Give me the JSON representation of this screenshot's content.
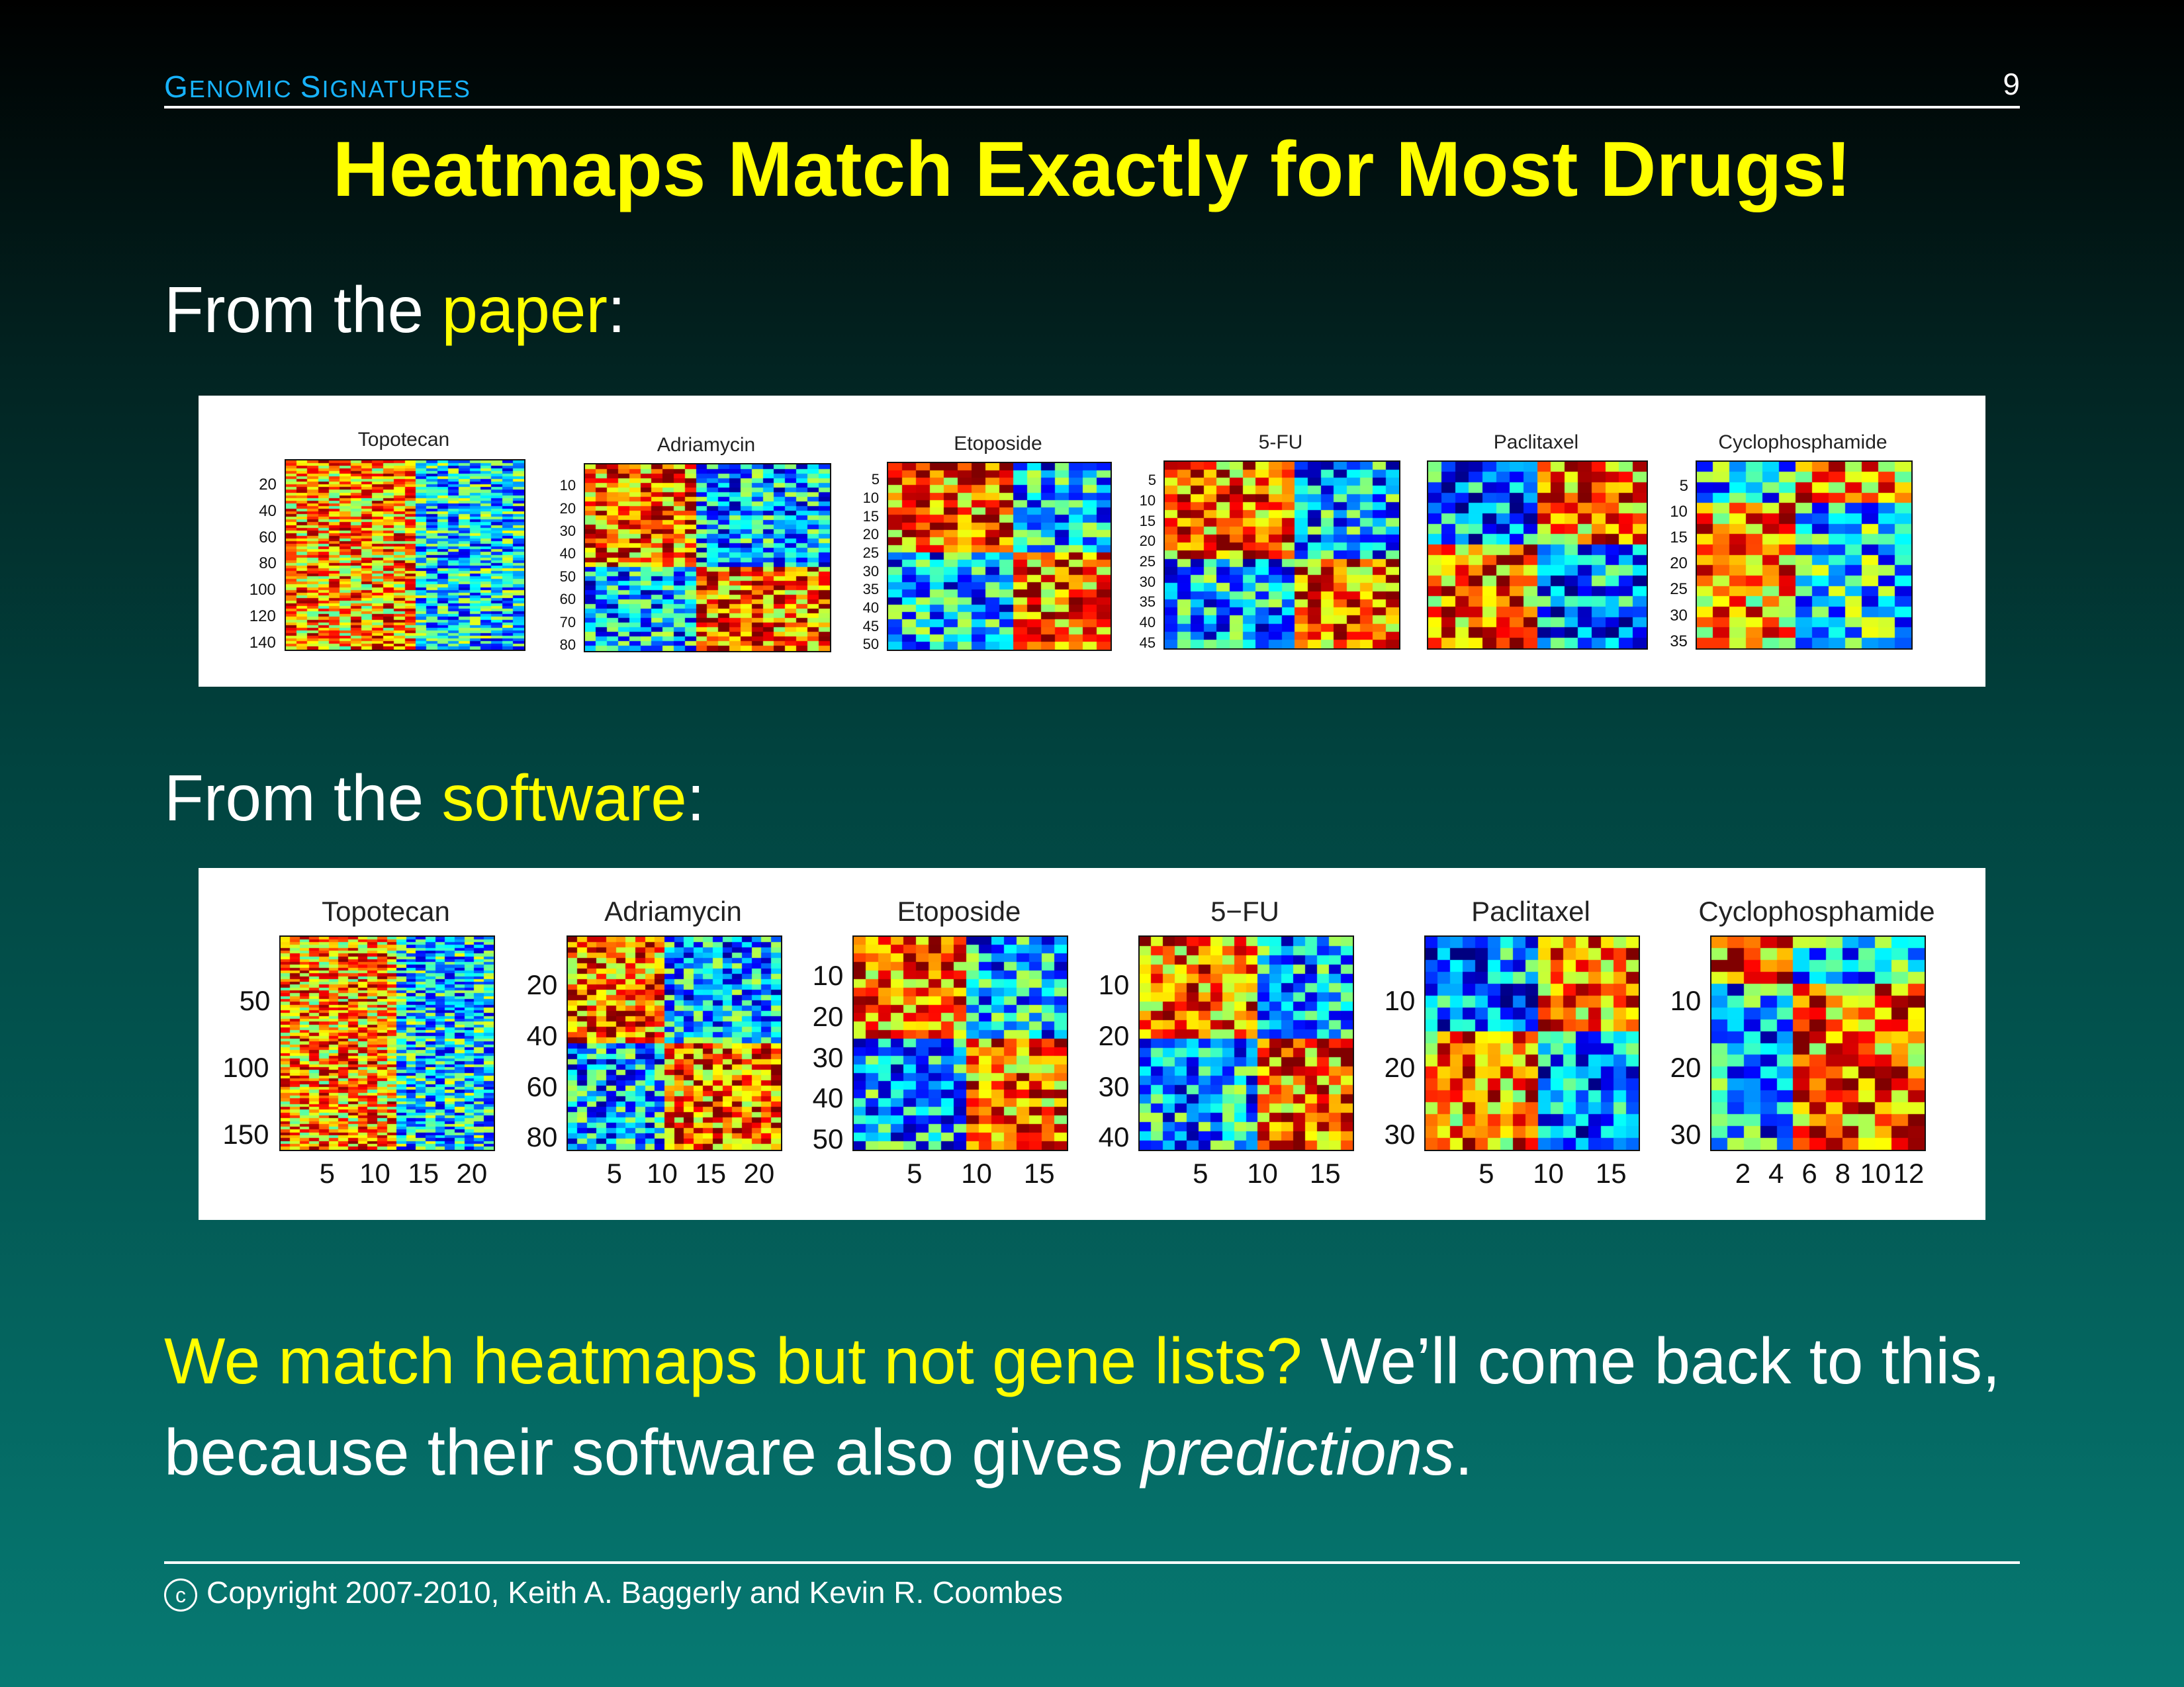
{
  "header": {
    "section_title_parts": [
      {
        "text": "G",
        "size": "big"
      },
      {
        "text": "ENOMIC ",
        "size": "sm"
      },
      {
        "text": "S",
        "size": "big"
      },
      {
        "text": "IGNATURES",
        "size": "sm"
      }
    ],
    "page_number": "9"
  },
  "slide_title": "Heatmaps Match Exactly for Most Drugs!",
  "paper_label": {
    "prefix": "From the ",
    "highlight": "paper",
    "suffix": ":"
  },
  "software_label": {
    "prefix": "From the ",
    "highlight": "software",
    "suffix": ":"
  },
  "paper_heatmaps": [
    {
      "title": "Topotecan",
      "yticks": [
        "20",
        "40",
        "60",
        "80",
        "100",
        "120",
        "140"
      ],
      "xticks": [],
      "rows": 70,
      "cols": 22,
      "split_col": 12,
      "split_row": 0,
      "pattern": "warm-left"
    },
    {
      "title": "Adriamycin",
      "yticks": [
        "10",
        "20",
        "30",
        "40",
        "50",
        "60",
        "70",
        "80"
      ],
      "xticks": [],
      "rows": 40,
      "cols": 22,
      "split_col": 10,
      "split_row": 22,
      "pattern": "quad-warm-tl"
    },
    {
      "title": "Etoposide",
      "yticks": [
        "5",
        "10",
        "15",
        "20",
        "25",
        "30",
        "35",
        "40",
        "45",
        "50"
      ],
      "xticks": [],
      "rows": 25,
      "cols": 16,
      "split_col": 9,
      "split_row": 12,
      "pattern": "quad-warm-tl"
    },
    {
      "title": "5-FU",
      "yticks": [
        "5",
        "10",
        "15",
        "20",
        "25",
        "30",
        "35",
        "40",
        "45"
      ],
      "xticks": [],
      "rows": 23,
      "cols": 18,
      "split_col": 10,
      "split_row": 12,
      "pattern": "quad-warm-tl"
    },
    {
      "title": "Paclitaxel",
      "yticks": [],
      "xticks": [],
      "rows": 18,
      "cols": 16,
      "split_col": 8,
      "split_row": 8,
      "pattern": "quad-cool-tl"
    },
    {
      "title": "Cyclophosphamide",
      "yticks": [
        "5",
        "10",
        "15",
        "20",
        "25",
        "30",
        "35"
      ],
      "xticks": [],
      "rows": 18,
      "cols": 13,
      "split_col": 6,
      "split_row": 4,
      "pattern": "mixed"
    }
  ],
  "software_heatmaps": [
    {
      "title": "Topotecan",
      "yticks": [
        "50",
        "100",
        "150"
      ],
      "xticks": [
        "5",
        "10",
        "15",
        "20"
      ],
      "rows": 75,
      "cols": 22,
      "split_col": 12,
      "split_row": 0,
      "pattern": "warm-left"
    },
    {
      "title": "Adriamycin",
      "yticks": [
        "20",
        "40",
        "60",
        "80"
      ],
      "xticks": [
        "5",
        "10",
        "15",
        "20"
      ],
      "rows": 40,
      "cols": 22,
      "split_col": 10,
      "split_row": 20,
      "pattern": "quad-warm-tl"
    },
    {
      "title": "Etoposide",
      "yticks": [
        "10",
        "20",
        "30",
        "40",
        "50"
      ],
      "xticks": [
        "5",
        "10",
        "15"
      ],
      "rows": 25,
      "cols": 17,
      "split_col": 9,
      "split_row": 12,
      "pattern": "quad-warm-tl"
    },
    {
      "title": "5−FU",
      "yticks": [
        "10",
        "20",
        "30",
        "40"
      ],
      "xticks": [
        "5",
        "10",
        "15"
      ],
      "rows": 23,
      "cols": 18,
      "split_col": 10,
      "split_row": 11,
      "pattern": "quad-warm-tl"
    },
    {
      "title": "Paclitaxel",
      "yticks": [
        "10",
        "20",
        "30"
      ],
      "xticks": [
        "5",
        "10",
        "15"
      ],
      "rows": 18,
      "cols": 17,
      "split_col": 9,
      "split_row": 8,
      "pattern": "quad-cool-tl"
    },
    {
      "title": "Cyclophosphamide",
      "yticks": [
        "10",
        "20",
        "30"
      ],
      "xticks": [
        "2",
        "4",
        "6",
        "8",
        "10",
        "12"
      ],
      "rows": 18,
      "cols": 13,
      "split_col": 5,
      "split_row": 4,
      "pattern": "quad-warm-tl"
    }
  ],
  "conclusion": {
    "highlight": "We match heatmaps but not gene lists?",
    "text_a": " We’ll come back to this, because their software also gives ",
    "emph": "predictions",
    "text_b": "."
  },
  "footer": {
    "symbol": "c",
    "text": "Copyright 2007-2010, Keith A. Baggerly and Kevin R. Coombes"
  },
  "colors": {
    "header_accent": "#17b3ff",
    "title": "#ffff00",
    "highlight": "#ffff00",
    "text": "#ffffff"
  }
}
